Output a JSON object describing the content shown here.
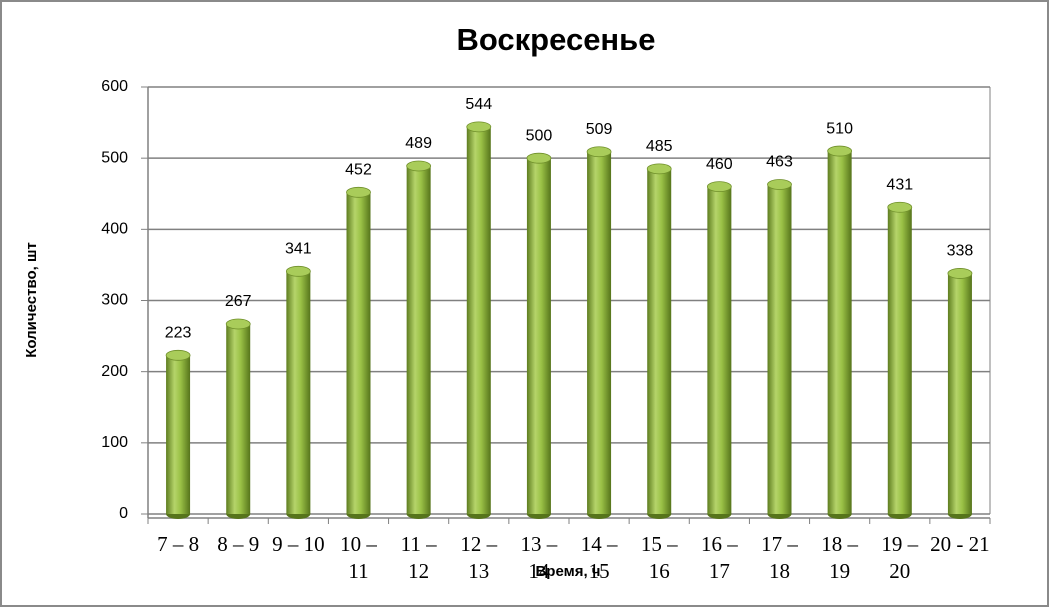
{
  "chart_data": {
    "type": "bar",
    "title": "Воскресенье",
    "xlabel": "Время, ч",
    "ylabel": "Количество, шт",
    "categories": [
      "7 – 8",
      "8 – 9",
      "9 – 10",
      "10 – 11",
      "11 – 12",
      "12 – 13",
      "13 – 14",
      "14 – 15",
      "15 – 16",
      "16 – 17",
      "17 – 18",
      "18 – 19",
      "19 – 20",
      "20 - 21"
    ],
    "values": [
      223,
      267,
      341,
      452,
      489,
      544,
      500,
      509,
      485,
      460,
      463,
      510,
      431,
      338
    ],
    "color": "#8db33a",
    "ylim": [
      0,
      600
    ],
    "yticks": [
      0,
      100,
      200,
      300,
      400,
      500,
      600
    ],
    "grid": true
  }
}
